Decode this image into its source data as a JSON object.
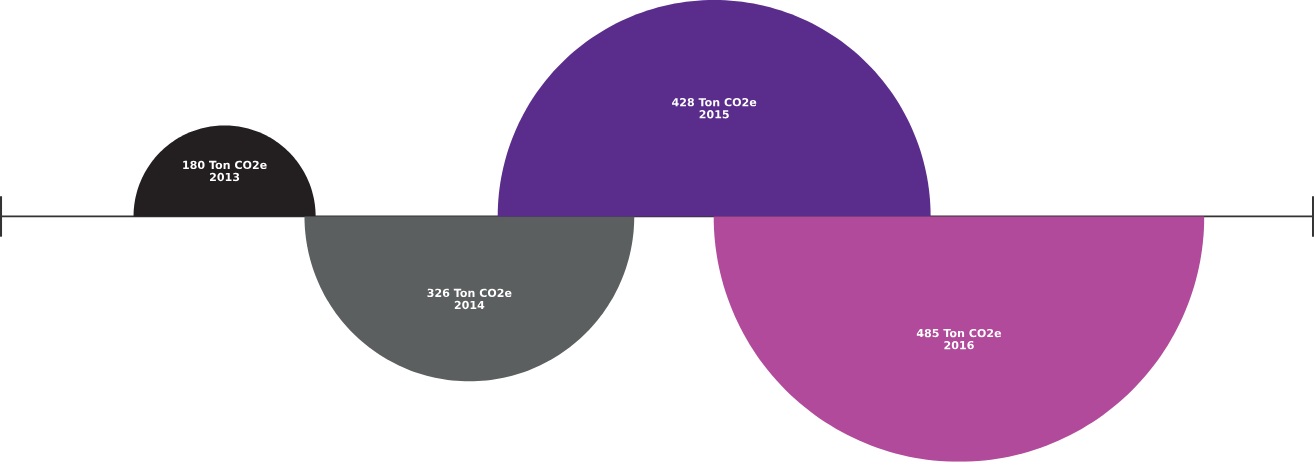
{
  "chart_data": {
    "type": "other",
    "categories": [
      "2013",
      "2014",
      "2015",
      "2016"
    ],
    "values": [
      180,
      326,
      428,
      485
    ],
    "value_labels": [
      "180 Ton CO2e",
      "326 Ton CO2e",
      "428 Ton CO2e",
      "485 Ton CO2e"
    ],
    "colors": [
      "#231f20",
      "#5c5f5f",
      "#5a2d8c",
      "#b14a9a"
    ]
  }
}
